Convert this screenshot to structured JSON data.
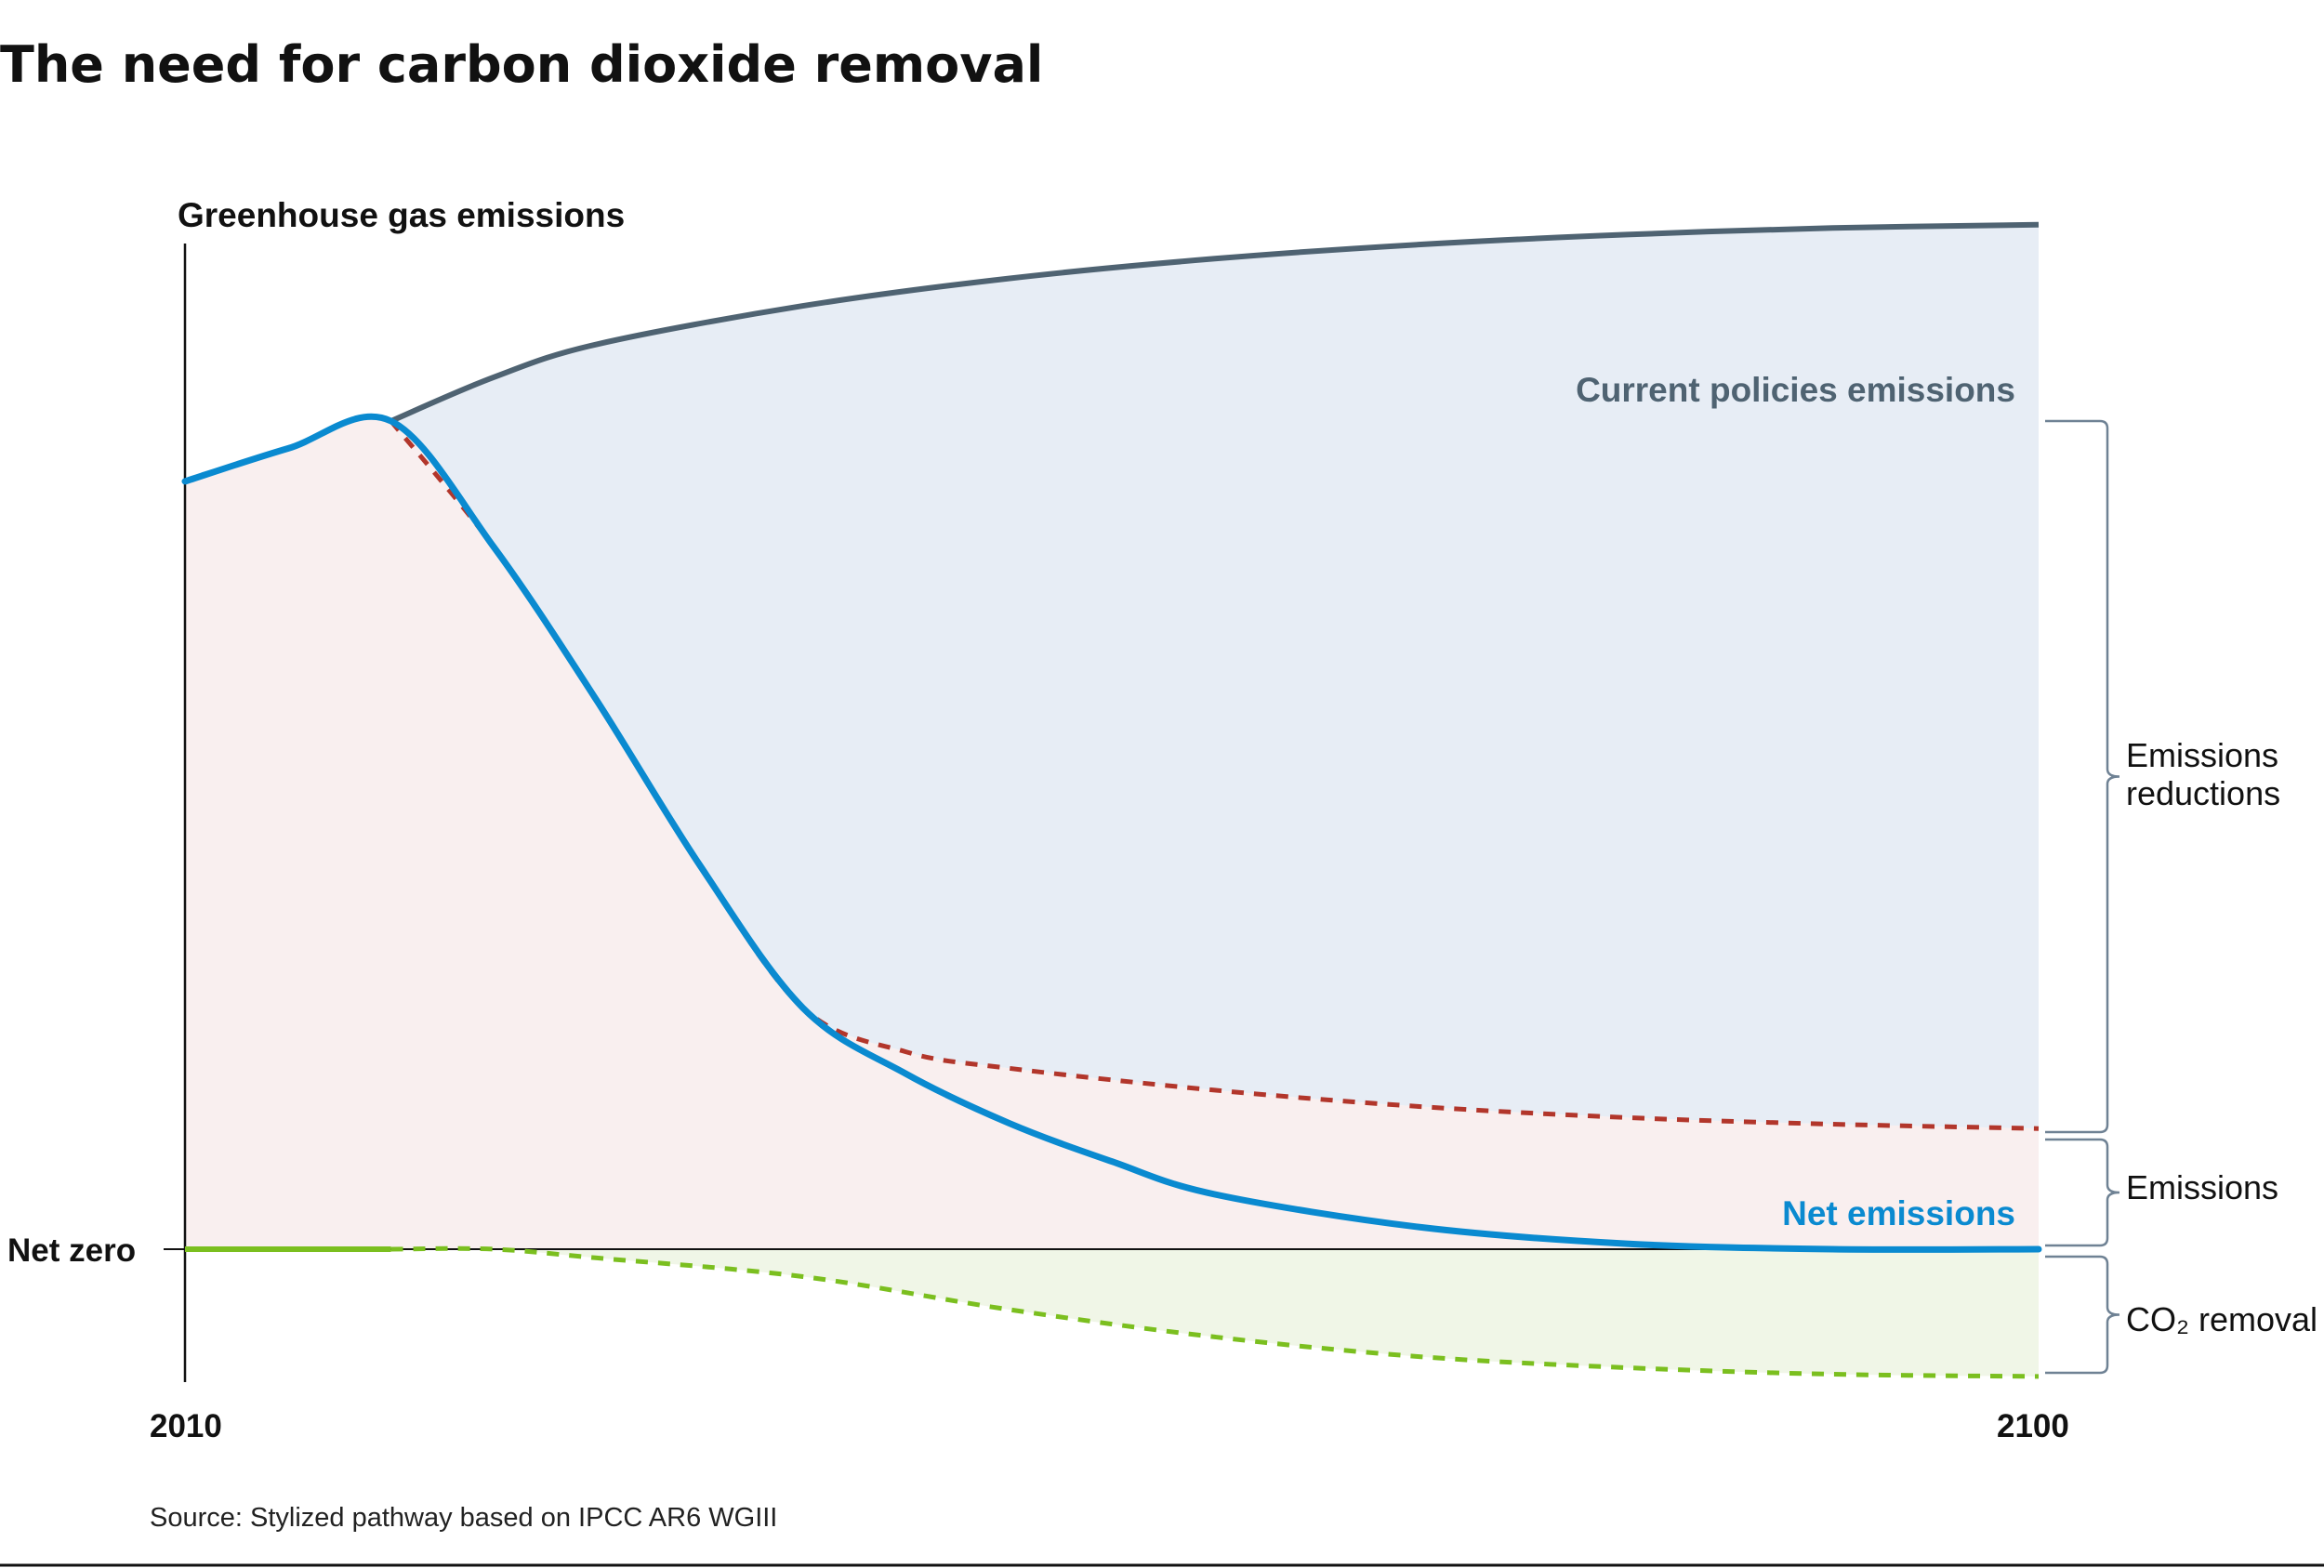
{
  "chart_data": {
    "type": "area",
    "title": "The need for carbon dioxide removal",
    "ylabel": "Greenhouse gas emissions",
    "xlabel": "",
    "x_ticks": [
      "2010",
      "2100"
    ],
    "y_ticks": [
      "Net zero"
    ],
    "xlim": [
      2010,
      2100
    ],
    "ylim": [
      -14,
      108
    ],
    "grid": false,
    "series": [
      {
        "name": "Current policies emissions",
        "style": "solid",
        "color": "#4f6372",
        "x": [
          2020,
          2025,
          2030,
          2040,
          2050,
          2060,
          2070,
          2080,
          2090,
          2100
        ],
        "y": [
          75.5,
          79.5,
          82.5,
          86,
          88.5,
          90.3,
          91.6,
          92.5,
          93.1,
          93.4
        ]
      },
      {
        "name": "Net emissions",
        "style": "solid",
        "color": "#0a8ad0",
        "x": [
          2010,
          2015,
          2020,
          2025,
          2030,
          2035,
          2040,
          2045,
          2050,
          2055,
          2060,
          2070,
          2080,
          2090,
          2100
        ],
        "y": [
          70,
          73,
          75.5,
          64,
          50,
          35,
          22,
          16,
          11.5,
          8,
          5,
          2,
          0.5,
          0,
          0
        ]
      },
      {
        "style": "dotted",
        "color": "#b2362b",
        "x": [
          2020,
          2025,
          2030,
          2035,
          2040,
          2045,
          2050,
          2060,
          2070,
          2080,
          2090,
          2100
        ],
        "y": [
          75.5,
          64,
          50,
          35,
          22,
          18,
          16.5,
          14.5,
          13,
          12,
          11.4,
          11
        ]
      },
      {
        "style": "dotted",
        "color": "#7bbf1f",
        "x": [
          2010,
          2020,
          2025,
          2030,
          2040,
          2050,
          2060,
          2070,
          2080,
          2090,
          2100
        ],
        "y": [
          0,
          0,
          0,
          -0.8,
          -2.5,
          -5.5,
          -8,
          -9.8,
          -10.8,
          -11.4,
          -11.6
        ]
      }
    ],
    "areas": [
      {
        "name": "Emissions reductions",
        "color": "#e7edf5"
      },
      {
        "name": "Emissions",
        "color": "#f9efef"
      },
      {
        "name": "CO₂ removal",
        "color": "#f0f6e7"
      }
    ],
    "bracket_labels": [
      [
        "Emissions",
        "reductions"
      ],
      [
        "Emissions"
      ],
      [
        "CO₂ removal"
      ]
    ],
    "source": "Source: Stylized pathway based on IPCC AR6 WGIII"
  }
}
